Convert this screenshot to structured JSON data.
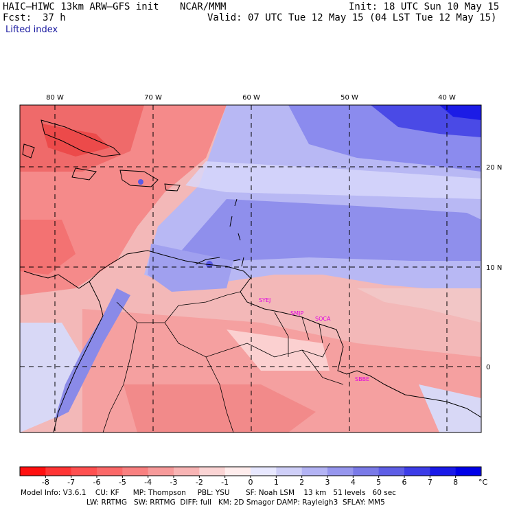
{
  "header": {
    "title_left": "HAIC–HIWC 13km ARW–GFS init",
    "center": "NCAR/MMM",
    "init": "Init: 18 UTC Sun 10 May 15",
    "fcst_label": "Fcst:",
    "fcst_value": "37 h",
    "valid": "Valid: 07 UTC Tue 12 May 15 (04 LST Tue 12 May 15)",
    "field": "Lifted index"
  },
  "map": {
    "lon_labels": [
      "80 W",
      "70 W",
      "60 W",
      "50 W",
      "40 W"
    ],
    "lat_labels": [
      "20 N",
      "10 N",
      "0"
    ],
    "stations": [
      "SYEJ",
      "SMJP",
      "SOCA",
      "SBBE"
    ]
  },
  "colorbar": {
    "labels": [
      "-8",
      "-7",
      "-6",
      "-5",
      "-4",
      "-3",
      "-2",
      "-1",
      "0",
      "1",
      "2",
      "3",
      "4",
      "5",
      "6",
      "7",
      "8"
    ],
    "unit": "°C",
    "colors": [
      "#ff1010",
      "#ff3535",
      "#ff5050",
      "#fb6868",
      "#f98080",
      "#f79a9a",
      "#f8b4b4",
      "#fbd4d4",
      "#ffeded",
      "#e8e8ff",
      "#cfcff8",
      "#b3b3f4",
      "#9696ee",
      "#7a7ae8",
      "#5e5ee6",
      "#3d3de8",
      "#1a1ae8",
      "#0000e8"
    ]
  },
  "info": {
    "line1": "Model Info: V3.6.1    CU: KF      MP: Thompson     PBL: YSU       SF: Noah LSM    13 km   51 levels   60 sec",
    "line2": "LW: RRTMG   SW: RRTMG  DIFF: full   KM: 2D Smagor DAMP: Rayleigh3  SFLAY: MM5"
  }
}
